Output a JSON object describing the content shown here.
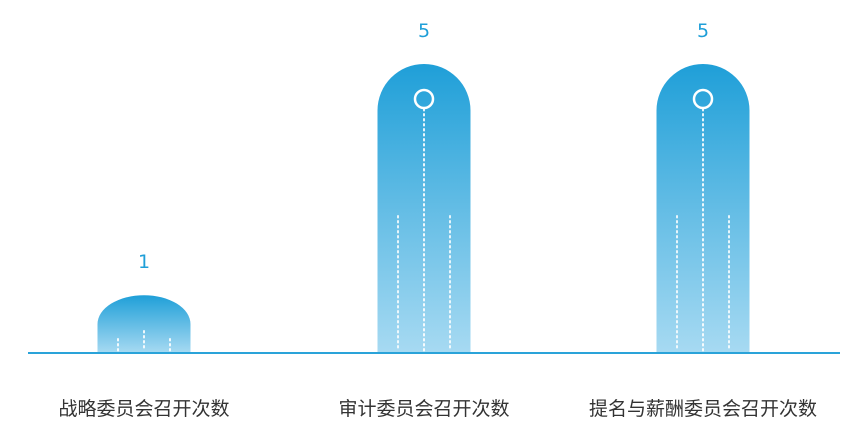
{
  "chart_data": {
    "type": "bar",
    "categories": [
      "战略委员会召开次数",
      "审计委员会召开次数",
      "提名与薪酬委员会召开次数"
    ],
    "values": [
      1,
      5,
      5
    ],
    "ylim": [
      0,
      5
    ],
    "grid": false,
    "legend": "none"
  },
  "colors": {
    "bar_top": "#1f9fd8",
    "bar_bottom": "#a7daf2",
    "value_text": "#1f9fd8",
    "category_text": "#333333",
    "baseline": "#2aa3d9",
    "decor": "#ffffff"
  }
}
